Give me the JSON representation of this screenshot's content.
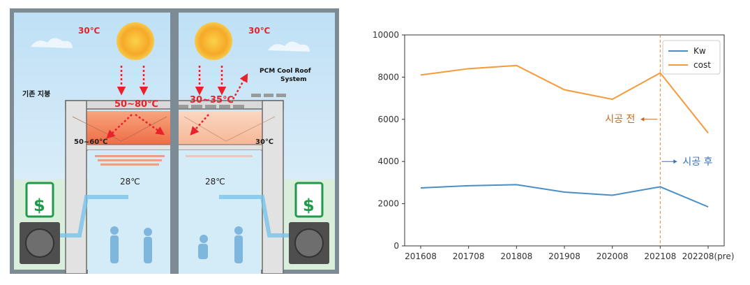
{
  "illustration": {
    "left_sun_temp": "30℃",
    "right_sun_temp": "30℃",
    "left_surface_temp": "50~80℃",
    "right_surface_temp": "30~35℃",
    "left_slab_temp": "50~60℃",
    "right_slab_temp": "30℃",
    "left_room_temp": "28℃",
    "right_room_temp": "28℃",
    "existing_roof_label": "기존 지붕",
    "pcm_label_line1": "PCM Cool Roof",
    "pcm_label_line2": "System",
    "dollar_sign": "$",
    "colors": {
      "sky": "#cfe6f6",
      "hot_slab": "#f0805a",
      "warm_slab": "#f8c3a8",
      "arrow_red": "#e8212a",
      "sun": "#f7b32b",
      "money_green": "#1f9a4b"
    }
  },
  "chart_data": {
    "type": "line",
    "categories": [
      "201608",
      "201708",
      "201808",
      "201908",
      "202008",
      "202108",
      "202208(pre)"
    ],
    "series": [
      {
        "name": "Kw",
        "values": [
          2750,
          2850,
          2900,
          2550,
          2400,
          2800,
          1850
        ],
        "color": "#4a8ec4"
      },
      {
        "name": "cost",
        "values": [
          8100,
          8400,
          8550,
          7400,
          6950,
          8200,
          5350
        ],
        "color": "#f59a3b"
      }
    ],
    "ylim": [
      0,
      10000
    ],
    "yticks": [
      "0",
      "2000",
      "4000",
      "6000",
      "8000",
      "10000"
    ],
    "legend_position": "top-right",
    "vline_category": "202108",
    "annotations": {
      "before": {
        "text": "시공 전",
        "color": "#c7681f"
      },
      "after": {
        "text": "시공 후",
        "color": "#3a6fb5"
      }
    },
    "grid": false
  }
}
